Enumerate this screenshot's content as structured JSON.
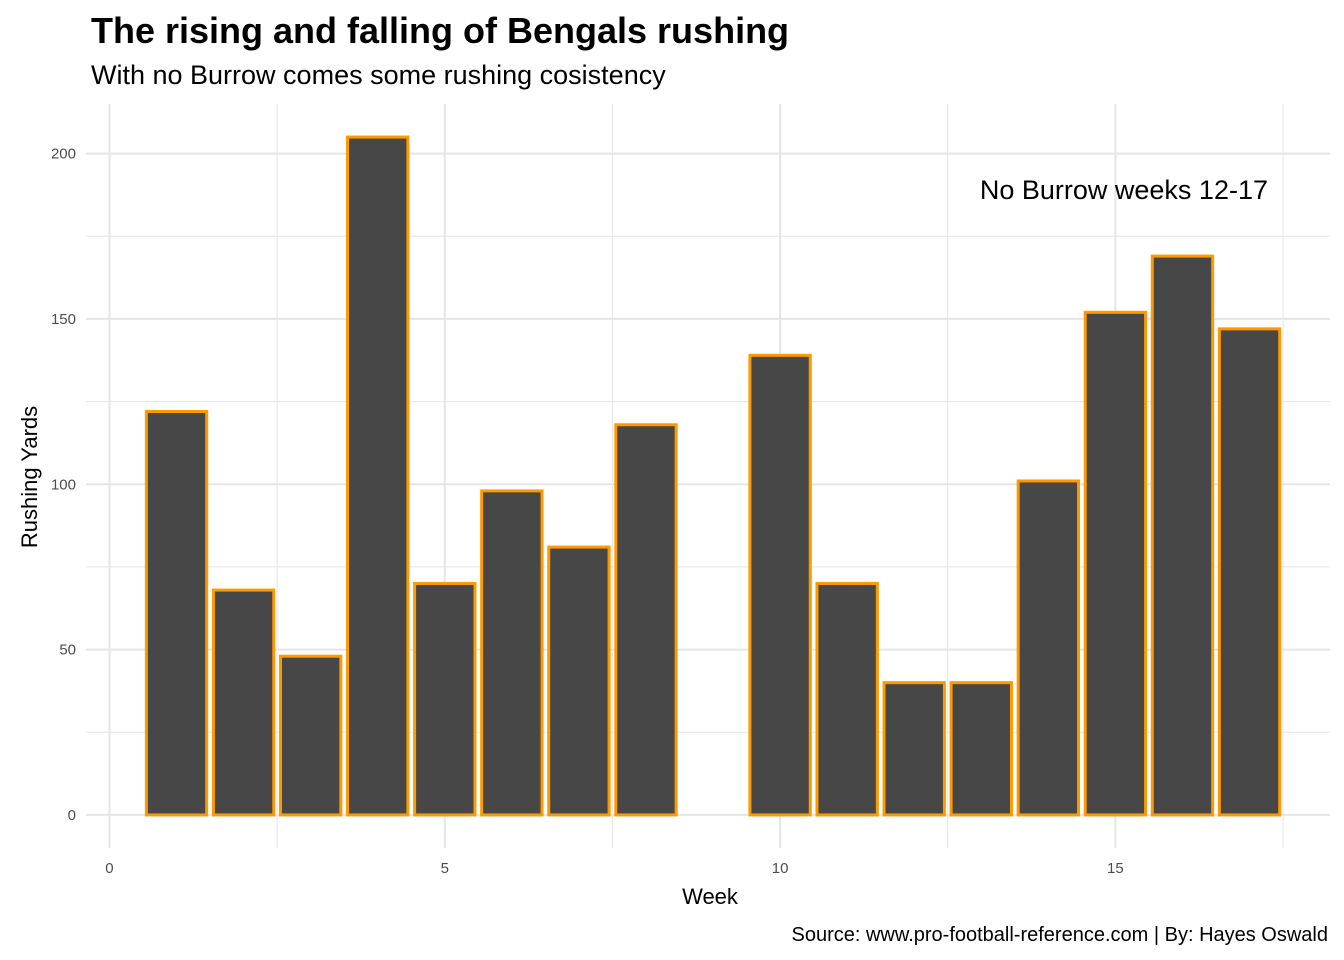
{
  "chart_data": {
    "type": "bar",
    "title": "The rising and falling of Bengals rushing",
    "subtitle": "With no Burrow comes some rushing cosistency",
    "xlabel": "Week",
    "ylabel": "Rushing Yards",
    "caption": "Source: www.pro-football-reference.com | By: Hayes Oswald",
    "annotation": "No Burrow weeks 12-17",
    "x": [
      1,
      2,
      3,
      4,
      5,
      6,
      7,
      8,
      10,
      11,
      12,
      13,
      14,
      15,
      16,
      17
    ],
    "values": [
      122,
      68,
      48,
      205,
      70,
      98,
      81,
      118,
      139,
      70,
      40,
      40,
      101,
      152,
      169,
      147
    ],
    "xlim": [
      -0.35,
      18.2
    ],
    "ylim": [
      -10,
      215
    ],
    "x_ticks": [
      0,
      5,
      10,
      15
    ],
    "x_tick_labels": [
      "0",
      "5",
      "10",
      "15"
    ],
    "y_ticks": [
      0,
      50,
      100,
      150,
      200
    ],
    "y_tick_labels": [
      "0",
      "50",
      "100",
      "150",
      "200"
    ],
    "grid": true,
    "colors": {
      "bar_fill": "#474747",
      "bar_outline": "#FF9900",
      "grid": "#e5e5e5"
    }
  }
}
